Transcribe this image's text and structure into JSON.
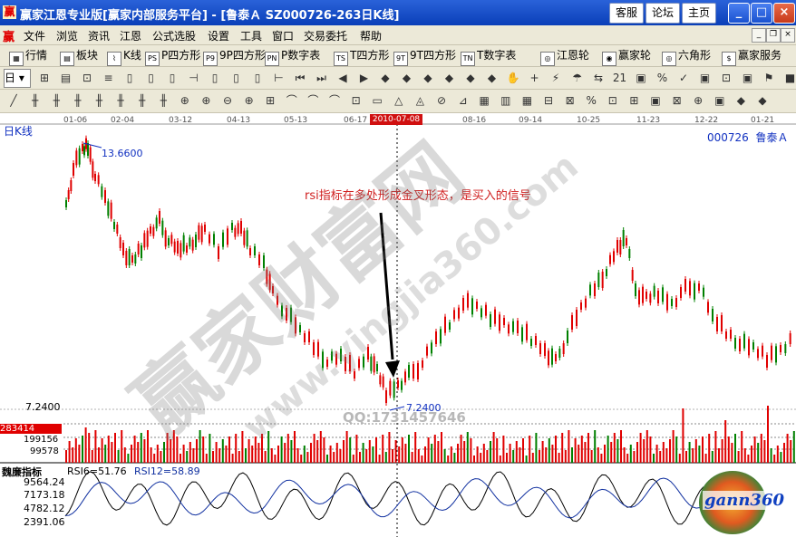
{
  "window": {
    "app_icon": "赢",
    "title": "赢家江恩专业版[赢家内部服务平台] - [鲁泰Ａ   SZ000726-263日K线]",
    "buttons": [
      "客服",
      "论坛",
      "主页"
    ],
    "controls": [
      "minimize",
      "maximize",
      "close"
    ]
  },
  "menubar": {
    "logo": "赢",
    "items": [
      "文件",
      "浏览",
      "资讯",
      "江恩",
      "公式选股",
      "设置",
      "工具",
      "窗口",
      "交易委托",
      "帮助"
    ]
  },
  "toolbar1": {
    "items": [
      {
        "icon": "grid-icon",
        "label": "行情"
      },
      {
        "icon": "blocks-icon",
        "label": "板块"
      },
      {
        "icon": "kline-icon",
        "label": "K线"
      },
      {
        "icon": "ps-icon",
        "label": "P四方形"
      },
      {
        "icon": "p9-icon",
        "label": "9P四方形"
      },
      {
        "icon": "pn-icon",
        "label": "P数字表"
      },
      {
        "icon": "ts-icon",
        "label": "T四方形"
      },
      {
        "icon": "t9-icon",
        "label": "9T四方形"
      },
      {
        "icon": "tn-icon",
        "label": "T数字表"
      },
      {
        "icon": "wheel-icon",
        "label": "江恩轮"
      },
      {
        "icon": "winner-icon",
        "label": "赢家轮"
      },
      {
        "icon": "hexagon-icon",
        "label": "六角形"
      },
      {
        "icon": "dollar-icon",
        "label": "赢家服务"
      }
    ]
  },
  "toolbar2": {
    "period_label": "日"
  },
  "chart": {
    "period_label": "日K线",
    "stock": "000726  鲁泰Ａ",
    "dates": [
      "01-06",
      "02-04",
      "03-12",
      "04-13",
      "05-13",
      "06-17",
      "08-16",
      "09-14",
      "10-25",
      "11-23",
      "12-22",
      "01-21"
    ],
    "cursor_date": "2010-07-08",
    "high_label": "13.6600",
    "low_label": "7.2400",
    "left_low_label": "7.2400",
    "annotation": "rsi指标在多处形成金叉形态，是买入的信号",
    "watermark_cn": "赢家财富网",
    "watermark_url": "www.yingjia360.com",
    "qq": "QQ:1731457646",
    "volume": {
      "current": "283414",
      "labels": [
        "199156",
        "99578"
      ]
    },
    "rsi": {
      "title": "魏廉指标",
      "rsi6": "RSI6=51.76",
      "rsi12": "RSI12=58.89",
      "labels": [
        "9564.24",
        "7173.18",
        "4782.12",
        "2391.06"
      ]
    },
    "logo": "gann360"
  },
  "colors": {
    "up": "#e00000",
    "down": "#008000",
    "rsi6": "#000000",
    "rsi12": "#1030a0"
  }
}
